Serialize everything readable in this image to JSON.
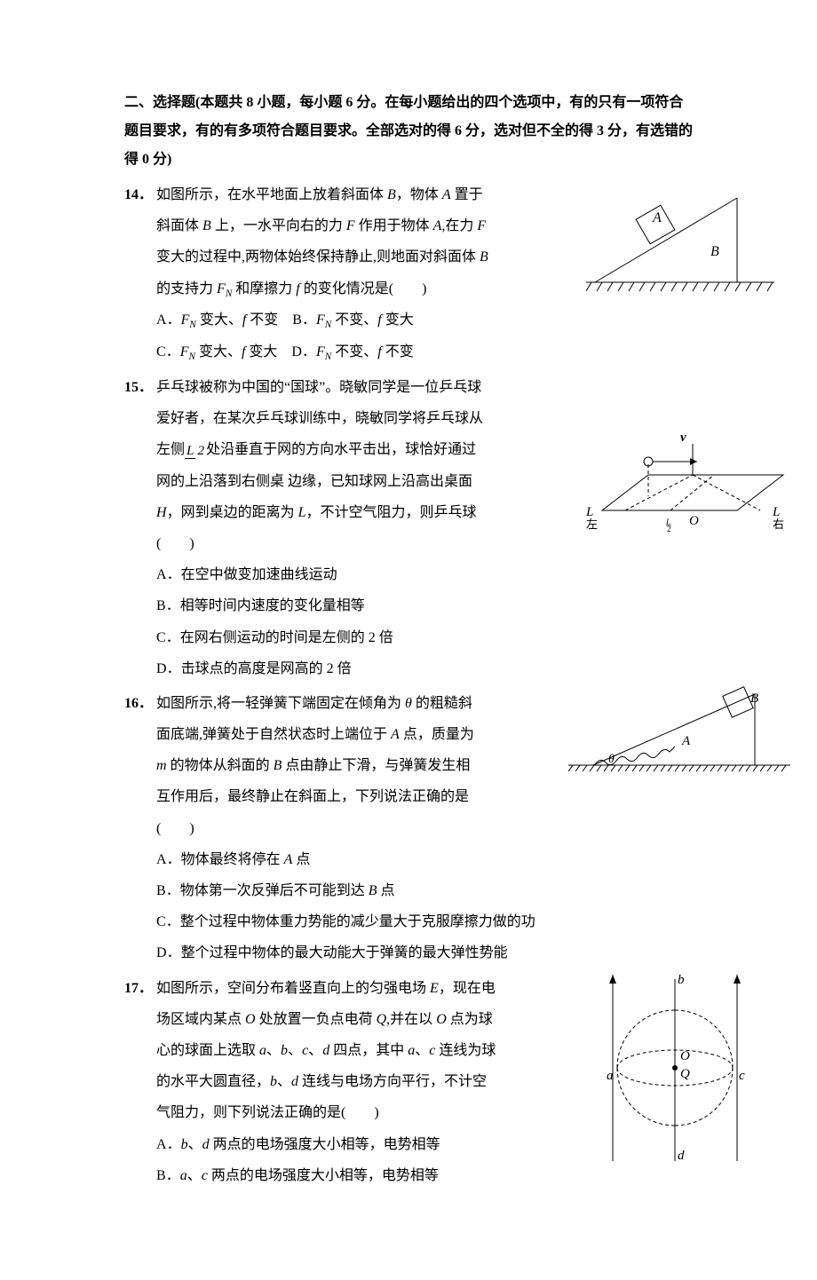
{
  "header": "二、选择题(本题共 8 小题，每小题 6 分。在每小题给出的四个选项中，有的只有一项符合题目要求，有的有多项符合题目要求。全部选对的得 6 分，选对但不全的得 3 分，有选错的得 0 分)",
  "questions": [
    {
      "num": "14．",
      "stem_parts": [
        "如图所示，在水平地面上放着斜面体 ",
        {
          "ital": "B"
        },
        "，物体 ",
        {
          "ital": "A"
        },
        " 置于斜面体 ",
        {
          "ital": "B"
        },
        " 上，一水平向右的力 ",
        {
          "ital": "F"
        },
        " 作用于物体 ",
        {
          "ital": "A"
        },
        ",在力 ",
        {
          "ital": "F"
        },
        " 变大的过程中,两物体始终保持静止,则地面对斜面体 ",
        {
          "ital": "B"
        },
        " 的支持力 ",
        {
          "ital": "F",
          "sub": "N"
        },
        " 和摩擦力 ",
        {
          "ital": "f"
        },
        " 的变化情况是(　　)"
      ],
      "options": [
        [
          "A．",
          {
            "ital": "F",
            "sub": "N"
          },
          " 变大、",
          {
            "ital": "f"
          },
          " 不变　B．",
          {
            "ital": "F",
            "sub": "N"
          },
          " 不变、",
          {
            "ital": "f"
          },
          " 变大"
        ],
        [
          "C．",
          {
            "ital": "F",
            "sub": "N"
          },
          " 变大、",
          {
            "ital": "f"
          },
          " 变大　D．",
          {
            "ital": "F",
            "sub": "N"
          },
          " 不变、",
          {
            "ital": "f"
          },
          " 不变"
        ]
      ],
      "figure": {
        "labels": {
          "A": "A",
          "B": "B"
        },
        "colors": {
          "stroke": "#000",
          "fill": "none"
        }
      }
    },
    {
      "num": "15．",
      "stem_parts": [
        "乒乓球被称为中国的“国球”。晓敏同学是一位乒乓球爱好者，在某次乒乓球训练中，晓敏同学将乒乓球从左侧",
        {
          "frac": [
            "L",
            "2"
          ]
        },
        "处沿垂直于网的方向水平击出，球恰好通过网的上沿落到右侧桌 边缘，已知球网上沿高出桌面 ",
        {
          "ital": "H"
        },
        "，网到桌边的距离为 ",
        {
          "ital": "L"
        },
        "，不计空气阻力，则乒乓球(　　)"
      ],
      "options": [
        [
          "A．在空中做变加速曲线运动"
        ],
        [
          "B．相等时间内速度的变化量相等"
        ],
        [
          "C．在网右侧运动的时间是左侧的 2 倍"
        ],
        [
          "D．击球点的高度是网高的 2 倍"
        ]
      ],
      "figure": {
        "labels": {
          "v": "v",
          "L": "L",
          "L2": "L/2",
          "O": "O",
          "left": "左",
          "right": "右"
        },
        "colors": {
          "stroke": "#000"
        }
      }
    },
    {
      "num": "16．",
      "stem_parts": [
        "如图所示,将一轻弹簧下端固定在倾角为 ",
        {
          "ital": "θ"
        },
        " 的粗糙斜面底端,弹簧处于自然状态时上端位于 ",
        {
          "ital": "A"
        },
        " 点，质量为 ",
        {
          "ital": "m"
        },
        " 的物体从斜面的 ",
        {
          "ital": "B"
        },
        " 点由静止下滑，与弹簧发生相互作用后，最终静止在斜面上，下列说法正确的是(　　)"
      ],
      "options": [
        [
          "A．物体最终将停在 ",
          {
            "ital": "A"
          },
          " 点"
        ],
        [
          "B．物体第一次反弹后不可能到达 ",
          {
            "ital": "B"
          },
          " 点"
        ],
        [
          "C．整个过程中物体重力势能的减少量大于克服摩擦力做的功"
        ],
        [
          "D．整个过程中物体的最大动能大于弹簧的最大弹性势能"
        ]
      ],
      "figure": {
        "labels": {
          "A": "A",
          "B": "B",
          "theta": "θ"
        },
        "colors": {
          "stroke": "#000"
        }
      }
    },
    {
      "num": "17．",
      "stem_parts": [
        "如图所示，空间分布着竖直向上的匀强电场 ",
        {
          "ital": "E"
        },
        "，现在电场区域内某点 ",
        {
          "ital": "O"
        },
        " 处放置一负点电荷 ",
        {
          "ital": "Q"
        },
        ",并在以 ",
        {
          "ital": "O"
        },
        " 点为球心的球面上选取 ",
        {
          "ital": "a"
        },
        "、",
        {
          "ital": "b"
        },
        "、",
        {
          "ital": "c"
        },
        "、",
        {
          "ital": "d"
        },
        " 四点，其中 ",
        {
          "ital": "a"
        },
        "、",
        {
          "ital": "c"
        },
        " 连线为球的水平大圆直径，",
        {
          "ital": "b"
        },
        "、",
        {
          "ital": "d"
        },
        " 连线与电场方向平行，不计空气阻力，则下列说法正确的是(　　)"
      ],
      "options": [
        [
          "A．",
          {
            "ital": "b"
          },
          "、",
          {
            "ital": "d"
          },
          " 两点的电场强度大小相等，电势相等"
        ],
        [
          "B．",
          {
            "ital": "a"
          },
          "、",
          {
            "ital": "c"
          },
          " 两点的电场强度大小相等，电势相等"
        ]
      ],
      "figure": {
        "labels": {
          "a": "a",
          "b": "b",
          "c": "c",
          "d": "d",
          "O": "O",
          "Q": "Q"
        },
        "colors": {
          "stroke": "#000"
        }
      }
    }
  ]
}
